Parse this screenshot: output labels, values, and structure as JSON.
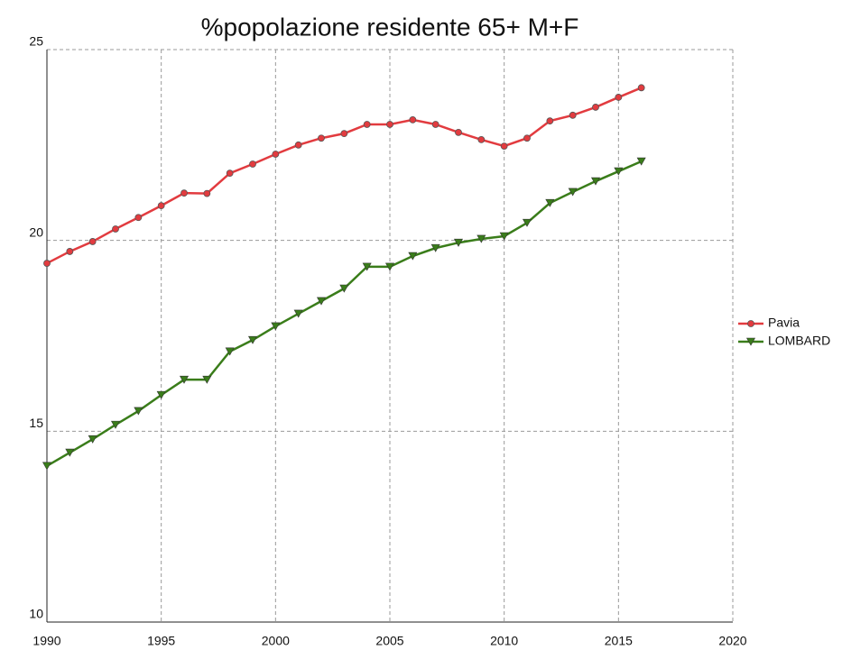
{
  "chart_data": {
    "type": "line",
    "title": "%popolazione residente 65+ M+F",
    "x": [
      1990,
      1991,
      1992,
      1993,
      1994,
      1995,
      1996,
      1997,
      1998,
      1999,
      2000,
      2001,
      2002,
      2003,
      2004,
      2005,
      2006,
      2007,
      2008,
      2009,
      2010,
      2011,
      2012,
      2013,
      2014,
      2015,
      2016
    ],
    "series": [
      {
        "name": "Pavia",
        "color": "#e23b3f",
        "marker": "circle",
        "values": [
          19.4,
          19.71,
          19.97,
          20.3,
          20.6,
          20.91,
          21.24,
          21.23,
          21.76,
          22.0,
          22.26,
          22.5,
          22.68,
          22.8,
          23.04,
          23.04,
          23.16,
          23.04,
          22.83,
          22.64,
          22.47,
          22.68,
          23.13,
          23.28,
          23.49,
          23.75,
          24.0
        ]
      },
      {
        "name": "LOMBARD",
        "color": "#3a7d1a",
        "marker": "triangle-down",
        "values": [
          14.09,
          14.44,
          14.79,
          15.17,
          15.53,
          15.95,
          16.35,
          16.35,
          17.09,
          17.39,
          17.75,
          18.08,
          18.41,
          18.74,
          19.31,
          19.31,
          19.59,
          19.8,
          19.94,
          20.04,
          20.11,
          20.46,
          20.98,
          21.27,
          21.55,
          21.81,
          22.07
        ]
      }
    ],
    "xlim": [
      1990,
      2020
    ],
    "xticks": [
      1990,
      1995,
      2000,
      2005,
      2010,
      2015,
      2020
    ],
    "ylim": [
      10,
      25
    ],
    "yticks": [
      10,
      15,
      20,
      25
    ],
    "grid": true,
    "legend": "right"
  }
}
